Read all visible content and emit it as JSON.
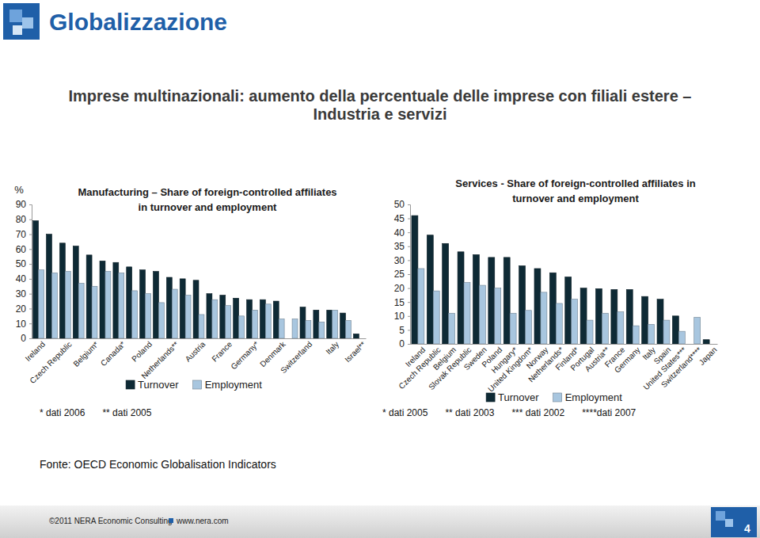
{
  "slide": {
    "title": "Globalizzazione",
    "subtitle": "Imprese multinazionali: aumento della percentuale delle imprese con filiali estere –\nIndustria e servizi",
    "source": "Fonte: OECD Economic Globalisation Indicators",
    "footer": {
      "copyright": "©2011 NERA Economic Consulting",
      "url": "www.nera.com",
      "page": 4
    }
  },
  "chart_data": [
    {
      "type": "bar",
      "title": "Manufacturing – Share of foreign-controlled affiliates\nin turnover and employment",
      "ylabel": "%",
      "categories": [
        "Ireland",
        null,
        "Czech Republic",
        null,
        "Belgium*",
        null,
        "Canada*",
        null,
        "Poland",
        null,
        "Netherlands**",
        null,
        "Austria",
        null,
        "France",
        null,
        "Germany*",
        null,
        "Denmark",
        null,
        "Switzerland",
        null,
        "Italy",
        null,
        "Israel**"
      ],
      "series": [
        {
          "name": "Turnover",
          "color": "#0e2a35",
          "values": [
            79,
            70,
            64,
            62,
            56,
            52,
            51,
            48,
            46,
            45,
            41,
            40,
            39,
            30,
            29,
            27,
            26,
            26,
            25,
            null,
            21,
            19,
            19,
            17,
            3
          ]
        },
        {
          "name": "Employment",
          "color": "#a8c6df",
          "values": [
            46,
            44,
            45,
            37,
            35,
            45,
            44,
            32,
            30,
            24,
            33,
            29,
            16,
            26,
            22,
            15,
            19,
            23,
            13,
            13,
            12,
            11,
            19,
            12,
            null
          ]
        }
      ],
      "ylim": [
        0,
        90
      ],
      "yticks": [
        0,
        10,
        20,
        30,
        40,
        50,
        60,
        70,
        80,
        90
      ],
      "legend": "bottom",
      "annotations": [
        "* dati 2006",
        "** dati 2005"
      ]
    },
    {
      "type": "bar",
      "title": "Services - Share of foreign-controlled affiliates in\nturnover and employment",
      "categories": [
        "Ireland",
        "Czech Republic",
        "Belgium",
        "Slovak Republic",
        "Sweden",
        "Poland",
        "Hungary*",
        "United Kingdom*",
        "Norway",
        "Netherlands*",
        "Finland*",
        "Portugal",
        "Austria**",
        "France",
        "Germany",
        "Italy",
        "Spain",
        "United States***",
        "Switzerland****",
        "Japan"
      ],
      "series": [
        {
          "name": "Turnover",
          "color": "#0e2a35",
          "values": [
            46,
            39,
            36,
            33,
            32,
            31,
            31,
            28,
            27,
            25.5,
            24,
            20,
            19.8,
            19.5,
            19.5,
            17,
            16,
            10,
            null,
            1.5
          ]
        },
        {
          "name": "Employment",
          "color": "#a8c6df",
          "values": [
            27,
            19,
            11,
            22,
            21,
            20,
            11,
            12,
            18.5,
            14.5,
            16,
            8.5,
            11,
            11.5,
            6.5,
            7,
            8.5,
            4.5,
            9.5,
            null
          ]
        }
      ],
      "ylim": [
        0,
        50
      ],
      "yticks": [
        0,
        5,
        10,
        15,
        20,
        25,
        30,
        35,
        40,
        45,
        50
      ],
      "legend": "bottom",
      "annotations": [
        "* dati 2005",
        "** dati 2003",
        "*** dati 2002",
        "****dati 2007"
      ]
    }
  ]
}
